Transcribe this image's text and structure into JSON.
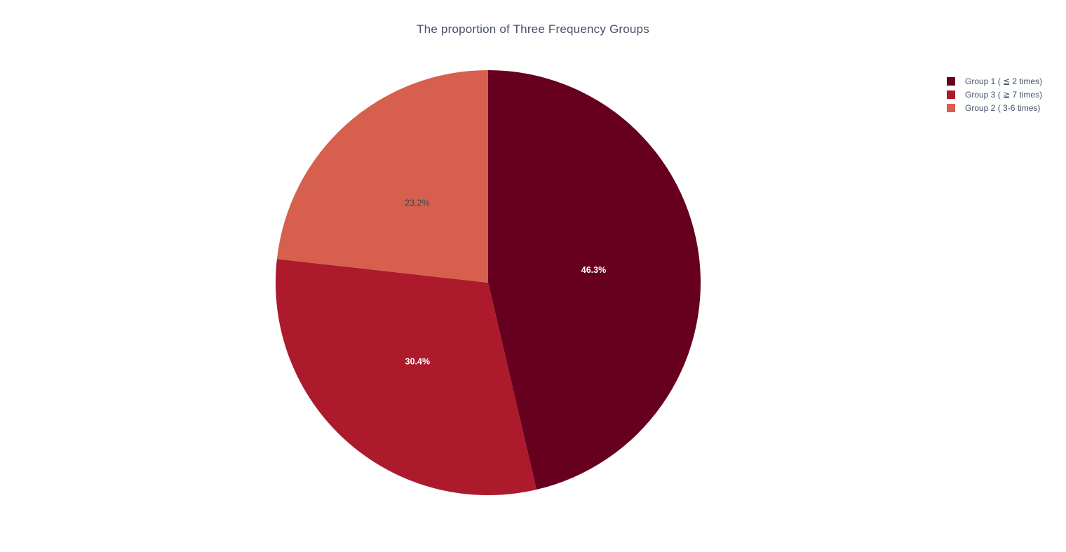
{
  "chart_data": {
    "type": "pie",
    "title": "The proportion of Three Frequency Groups",
    "slices": [
      {
        "label": "Group 1 ( ≦ 2 times)",
        "value": 46.3,
        "text": "46.3%",
        "color": "#67001f",
        "text_color": "#ffffff"
      },
      {
        "label": "Group 3 ( ≧ 7 times)",
        "value": 30.4,
        "text": "30.4%",
        "color": "#ac1a2c",
        "text_color": "#ffffff"
      },
      {
        "label": "Group 2 ( 3-6 times)",
        "value": 23.2,
        "text": "23.2%",
        "color": "#d6604d",
        "text_color": "#444444"
      }
    ],
    "start_angle": "12 o'clock",
    "direction": "clockwise",
    "legend_position": "top-right",
    "legend_order": [
      "Group 1 ( ≦ 2 times)",
      "Group 3 ( ≧ 7 times)",
      "Group 2 ( 3-6 times)"
    ]
  }
}
